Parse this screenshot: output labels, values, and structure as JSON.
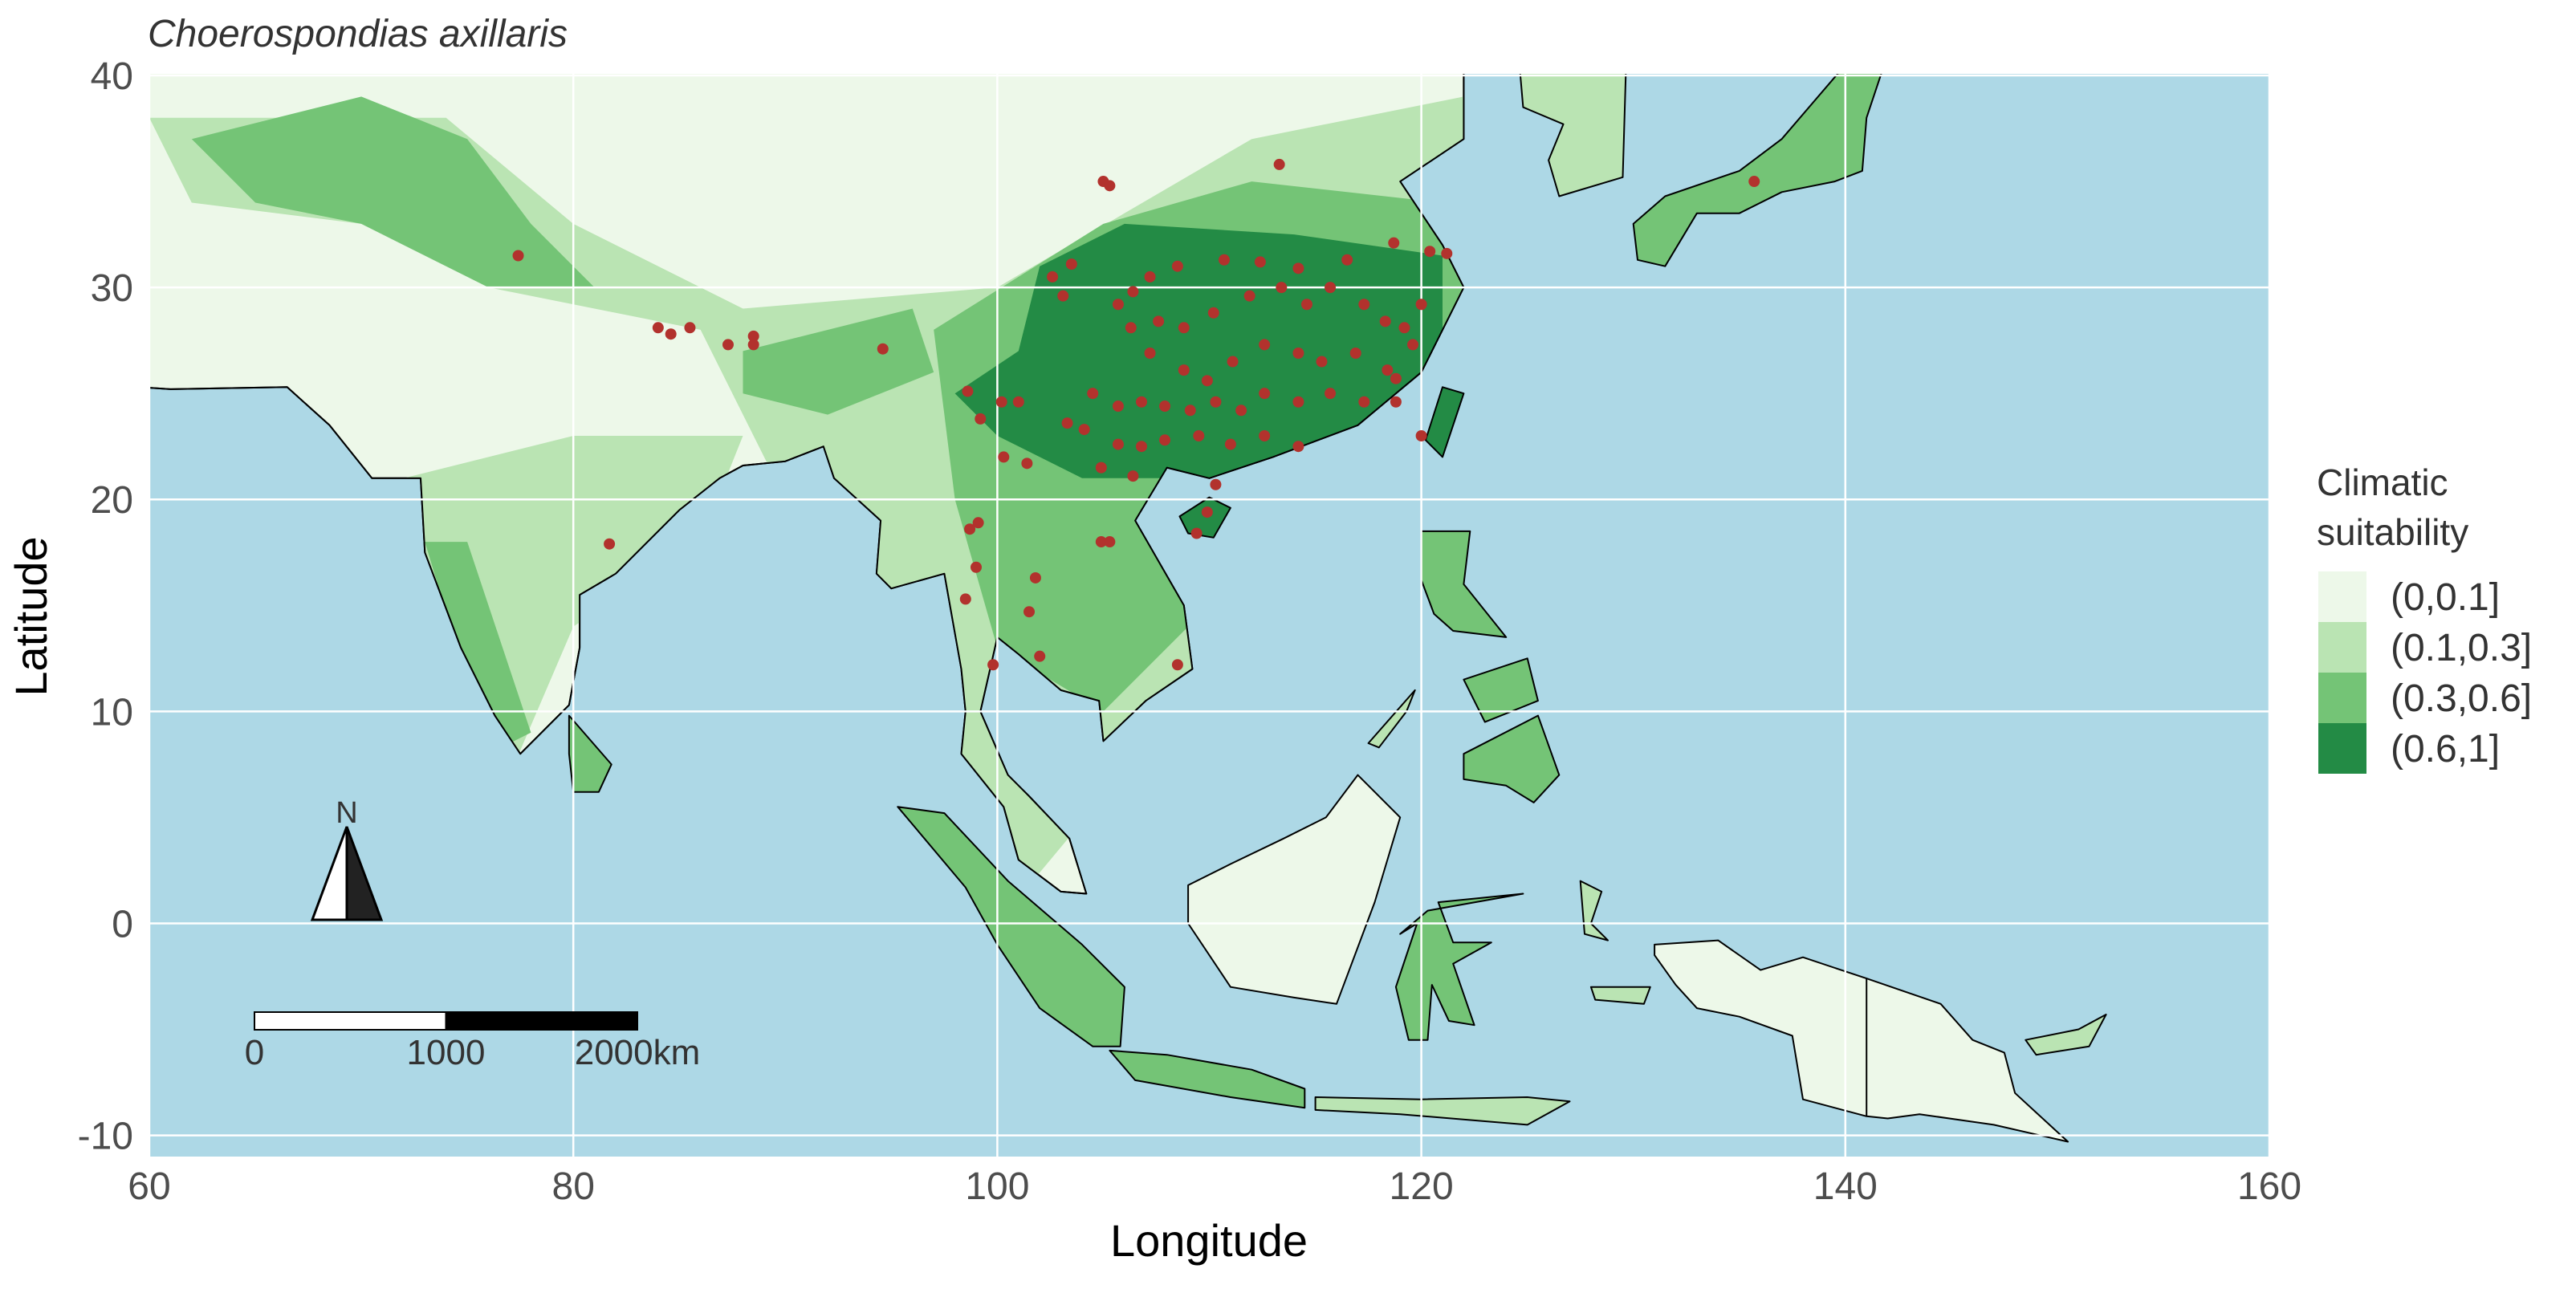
{
  "chart_data": {
    "type": "map",
    "title": "Choerospondias axillaris",
    "x_label": "Longitude",
    "y_label": "Latitude",
    "xlim": [
      60,
      160
    ],
    "ylim": [
      -11,
      40
    ],
    "xticks": [
      60,
      80,
      100,
      120,
      140,
      160
    ],
    "yticks": [
      -10,
      0,
      10,
      20,
      30,
      40
    ],
    "grid": true,
    "legend": {
      "title": "Climatic suitability",
      "entries": [
        {
          "label": "(0,0.1]",
          "color": "#edf8e9"
        },
        {
          "label": "(0.1,0.3]",
          "color": "#bae4b3"
        },
        {
          "label": "(0.3,0.6]",
          "color": "#74c476"
        },
        {
          "label": "(0.6,1]",
          "color": "#238b45"
        }
      ]
    },
    "occurrences": {
      "color": "#b2322d",
      "lon": [
        113.3,
        105.0,
        105.3,
        77.4,
        84.0,
        84.6,
        85.5,
        87.3,
        88.5,
        88.5,
        94.6,
        81.7,
        135.7,
        120.0,
        102.6,
        103.5,
        103.1,
        105.7,
        106.4,
        107.2,
        108.5,
        110.7,
        112.4,
        114.2,
        116.5,
        118.7,
        120.4,
        121.2,
        120.0,
        119.2,
        118.3,
        117.3,
        115.7,
        114.6,
        113.4,
        111.9,
        110.2,
        108.8,
        107.6,
        106.3,
        107.2,
        108.8,
        109.9,
        111.1,
        112.6,
        114.2,
        115.3,
        116.9,
        118.4,
        118.8,
        119.6,
        118.8,
        117.3,
        115.7,
        114.2,
        112.6,
        111.5,
        110.3,
        109.1,
        107.9,
        106.8,
        105.7,
        104.5,
        103.3,
        104.1,
        105.7,
        106.8,
        107.9,
        109.5,
        111.0,
        112.6,
        114.2,
        100.2,
        101.0,
        98.6,
        99.2,
        100.3,
        101.4,
        104.9,
        106.4,
        110.3,
        109.9,
        109.4,
        104.9,
        105.3,
        98.7,
        99.1,
        99.0,
        98.5,
        101.8,
        101.5,
        99.8,
        102.0,
        108.5
      ],
      "lat": [
        35.8,
        35.0,
        34.8,
        31.5,
        28.1,
        27.8,
        28.1,
        27.3,
        27.7,
        27.3,
        27.1,
        17.9,
        35.0,
        23.0,
        30.5,
        31.1,
        29.6,
        29.2,
        29.8,
        30.5,
        31.0,
        31.3,
        31.2,
        30.9,
        31.3,
        32.1,
        31.7,
        31.6,
        29.2,
        28.1,
        28.4,
        29.2,
        30.0,
        29.2,
        30.0,
        29.6,
        28.8,
        28.1,
        28.4,
        28.1,
        26.9,
        26.1,
        25.6,
        26.5,
        27.3,
        26.9,
        26.5,
        26.9,
        26.1,
        25.7,
        27.3,
        24.6,
        24.6,
        25.0,
        24.6,
        25.0,
        24.2,
        24.6,
        24.2,
        24.4,
        24.6,
        24.4,
        25.0,
        23.6,
        23.3,
        22.6,
        22.5,
        22.8,
        23.0,
        22.6,
        23.0,
        22.5,
        24.6,
        24.6,
        25.1,
        23.8,
        22.0,
        21.7,
        21.5,
        21.1,
        20.7,
        19.4,
        18.4,
        18.0,
        18.0,
        18.6,
        18.9,
        16.8,
        15.3,
        16.3,
        14.7,
        12.2,
        12.6,
        12.2
      ]
    },
    "north_arrow": "N",
    "scale_bar": {
      "ticks": [
        0,
        1000,
        {
          "value": 2000,
          "label": "2000km"
        }
      ]
    }
  }
}
